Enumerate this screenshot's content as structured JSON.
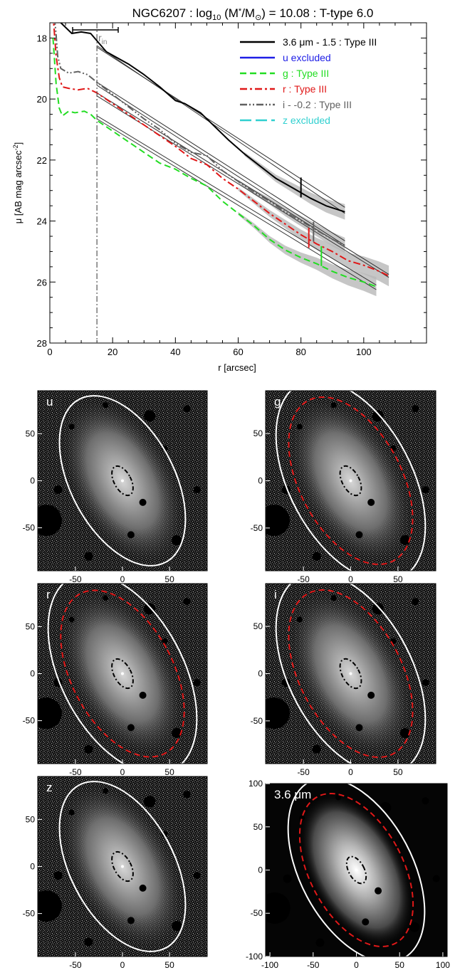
{
  "figure": {
    "title_prefix": "NGC6207 : log",
    "title_sub": "10",
    "title_mid": " (M",
    "title_star": "*",
    "title_slash": "/M",
    "title_sun": "⊙",
    "title_suffix": ") = 10.08 : T-type 6.0"
  },
  "chart_data": [
    {
      "type": "line",
      "xlabel": "r [arcsec]",
      "ylabel_main": "μ [AB mag arcsec",
      "ylabel_sup": "-2",
      "ylabel_end": "]",
      "xlim": [
        0,
        120
      ],
      "ylim": [
        28,
        17.5
      ],
      "y_inverted": true,
      "xticks": [
        0,
        20,
        40,
        60,
        80,
        100
      ],
      "yticks": [
        18,
        20,
        22,
        24,
        26,
        28
      ],
      "rin_label": "r",
      "rin_sub": "in",
      "rin_value": 15,
      "legend_position": "top-right",
      "legend": [
        {
          "label": "3.6 μm - 1.5 : Type III",
          "color": "#000000",
          "dash": "solid",
          "text_color": "#000000"
        },
        {
          "label": "u excluded",
          "color": "#1e1ee6",
          "dash": "solid",
          "text_color": "#1e1ee6"
        },
        {
          "label": "g : Type III",
          "color": "#22dd22",
          "dash": "dashed",
          "text_color": "#22dd22"
        },
        {
          "label": "r : Type III",
          "color": "#e01818",
          "dash": "dashdot",
          "text_color": "#e01818"
        },
        {
          "label": "i - -0.2 : Type III",
          "color": "#606060",
          "dash": "dashdotdot",
          "text_color": "#606060"
        },
        {
          "label": "z excluded",
          "color": "#30d0d0",
          "dash": "longdash",
          "text_color": "#30d0d0"
        }
      ],
      "series": [
        {
          "name": "3.6 μm - 1.5 : Type III",
          "color": "#000000",
          "dash": "solid",
          "width": 2,
          "x": [
            1,
            2,
            3,
            3.5,
            7,
            10,
            13,
            18,
            25,
            30,
            35,
            40,
            43,
            48,
            52,
            57,
            62,
            67,
            72,
            78,
            83,
            88,
            94
          ],
          "y": [
            16.2,
            16.8,
            17.2,
            17.5,
            17.85,
            17.8,
            17.85,
            18.45,
            18.85,
            19.2,
            19.6,
            20.05,
            20.15,
            20.45,
            20.85,
            21.35,
            21.8,
            22.2,
            22.6,
            22.95,
            23.25,
            23.5,
            23.7
          ],
          "fits": [
            {
              "x": [
                15,
                94
              ],
              "y": [
                18.3,
                23.55
              ]
            },
            {
              "x": [
                15,
                94
              ],
              "y": [
                18.25,
                23.75
              ]
            }
          ],
          "break_x": 80,
          "break_y": 22.9
        },
        {
          "name": "i - -0.2 : Type III",
          "color": "#606060",
          "dash": "dashdotdot",
          "width": 2,
          "x": [
            1,
            2,
            2.5,
            3.5,
            6,
            9,
            12,
            15,
            20,
            25,
            30,
            35,
            40,
            45,
            50,
            55,
            60,
            65,
            70,
            75,
            80,
            85,
            90,
            94
          ],
          "y": [
            16.8,
            17.9,
            18.6,
            19.0,
            19.15,
            19.1,
            19.2,
            19.45,
            19.85,
            20.25,
            20.65,
            21.0,
            21.45,
            21.75,
            21.85,
            22.35,
            22.7,
            23.05,
            23.35,
            23.7,
            24.0,
            24.3,
            24.6,
            24.8
          ],
          "fits": [
            {
              "x": [
                15,
                94
              ],
              "y": [
                19.45,
                24.65
              ]
            },
            {
              "x": [
                15,
                94
              ],
              "y": [
                19.55,
                24.8
              ]
            }
          ],
          "break_x": 84,
          "break_y": 24.35
        },
        {
          "name": "r : Type III",
          "color": "#e01818",
          "dash": "dashdot",
          "width": 2,
          "x": [
            1,
            2,
            3,
            4,
            6,
            9,
            12,
            15,
            20,
            25,
            30,
            35,
            40,
            45,
            50,
            55,
            60,
            65,
            70,
            75,
            80,
            85,
            90,
            95,
            100,
            105,
            108
          ],
          "y": [
            17.2,
            18.6,
            19.3,
            19.6,
            19.65,
            19.7,
            19.65,
            19.8,
            20.15,
            20.5,
            20.85,
            21.2,
            21.55,
            21.95,
            22.15,
            22.6,
            22.95,
            23.35,
            23.75,
            24.1,
            24.45,
            24.75,
            25.0,
            25.3,
            25.45,
            25.65,
            25.8
          ],
          "fits": [
            {
              "x": [
                15,
                108
              ],
              "y": [
                19.8,
                25.75
              ]
            },
            {
              "x": [
                15,
                108
              ],
              "y": [
                19.9,
                25.85
              ]
            }
          ],
          "break_x": 82.5,
          "break_y": 24.55
        },
        {
          "name": "g : Type III",
          "color": "#22dd22",
          "dash": "dashed",
          "width": 2,
          "x": [
            1,
            2,
            3,
            4,
            6,
            8,
            11,
            13,
            15,
            20,
            25,
            30,
            35,
            40,
            45,
            50,
            55,
            60,
            65,
            70,
            75,
            80,
            85,
            90,
            95,
            100,
            104
          ],
          "y": [
            18.0,
            19.5,
            20.3,
            20.55,
            20.4,
            20.45,
            20.4,
            20.5,
            20.7,
            21.05,
            21.4,
            21.75,
            22.1,
            22.3,
            22.6,
            22.85,
            23.35,
            23.75,
            24.15,
            24.6,
            24.95,
            25.2,
            25.4,
            25.65,
            25.85,
            26.0,
            26.15
          ],
          "fits": [
            {
              "x": [
                15,
                104
              ],
              "y": [
                20.55,
                26.1
              ]
            },
            {
              "x": [
                15,
                104
              ],
              "y": [
                20.65,
                26.25
              ]
            }
          ],
          "break_x": 86.5,
          "break_y": 25.15
        }
      ]
    }
  ],
  "panels": [
    {
      "label": "u",
      "xticks": [
        -50,
        0,
        50
      ],
      "yticks": [
        50,
        0,
        -50
      ],
      "range": 90,
      "outer_red": false,
      "bg": "#111111",
      "inner_ellipse": "dashdot"
    },
    {
      "label": "g",
      "xticks": [
        -50,
        0,
        50
      ],
      "yticks": [
        50,
        0,
        -50
      ],
      "range": 90,
      "outer_red": true,
      "bg": "#111111",
      "inner_ellipse": "dashdot"
    },
    {
      "label": "r",
      "xticks": [
        -50,
        0,
        50
      ],
      "yticks": [
        50,
        0,
        -50
      ],
      "range": 90,
      "outer_red": true,
      "bg": "#111111",
      "inner_ellipse": "dashdot"
    },
    {
      "label": "i",
      "xticks": [
        -50,
        0,
        50
      ],
      "yticks": [
        50,
        0,
        -50
      ],
      "range": 90,
      "outer_red": true,
      "bg": "#111111",
      "inner_ellipse": "dashdot"
    },
    {
      "label": "z",
      "xticks": [
        -50,
        0,
        50
      ],
      "yticks": [
        50,
        0,
        -50
      ],
      "range": 90,
      "outer_red": false,
      "bg": "#111111",
      "inner_ellipse": "dashdot"
    },
    {
      "label": "3.6 μm",
      "xticks": [
        -100,
        -50,
        0,
        50,
        100
      ],
      "yticks": [
        100,
        50,
        0,
        -50,
        -100
      ],
      "range": 105,
      "outer_red": true,
      "bg": "#000000",
      "inner_ellipse": "dashdot"
    }
  ]
}
